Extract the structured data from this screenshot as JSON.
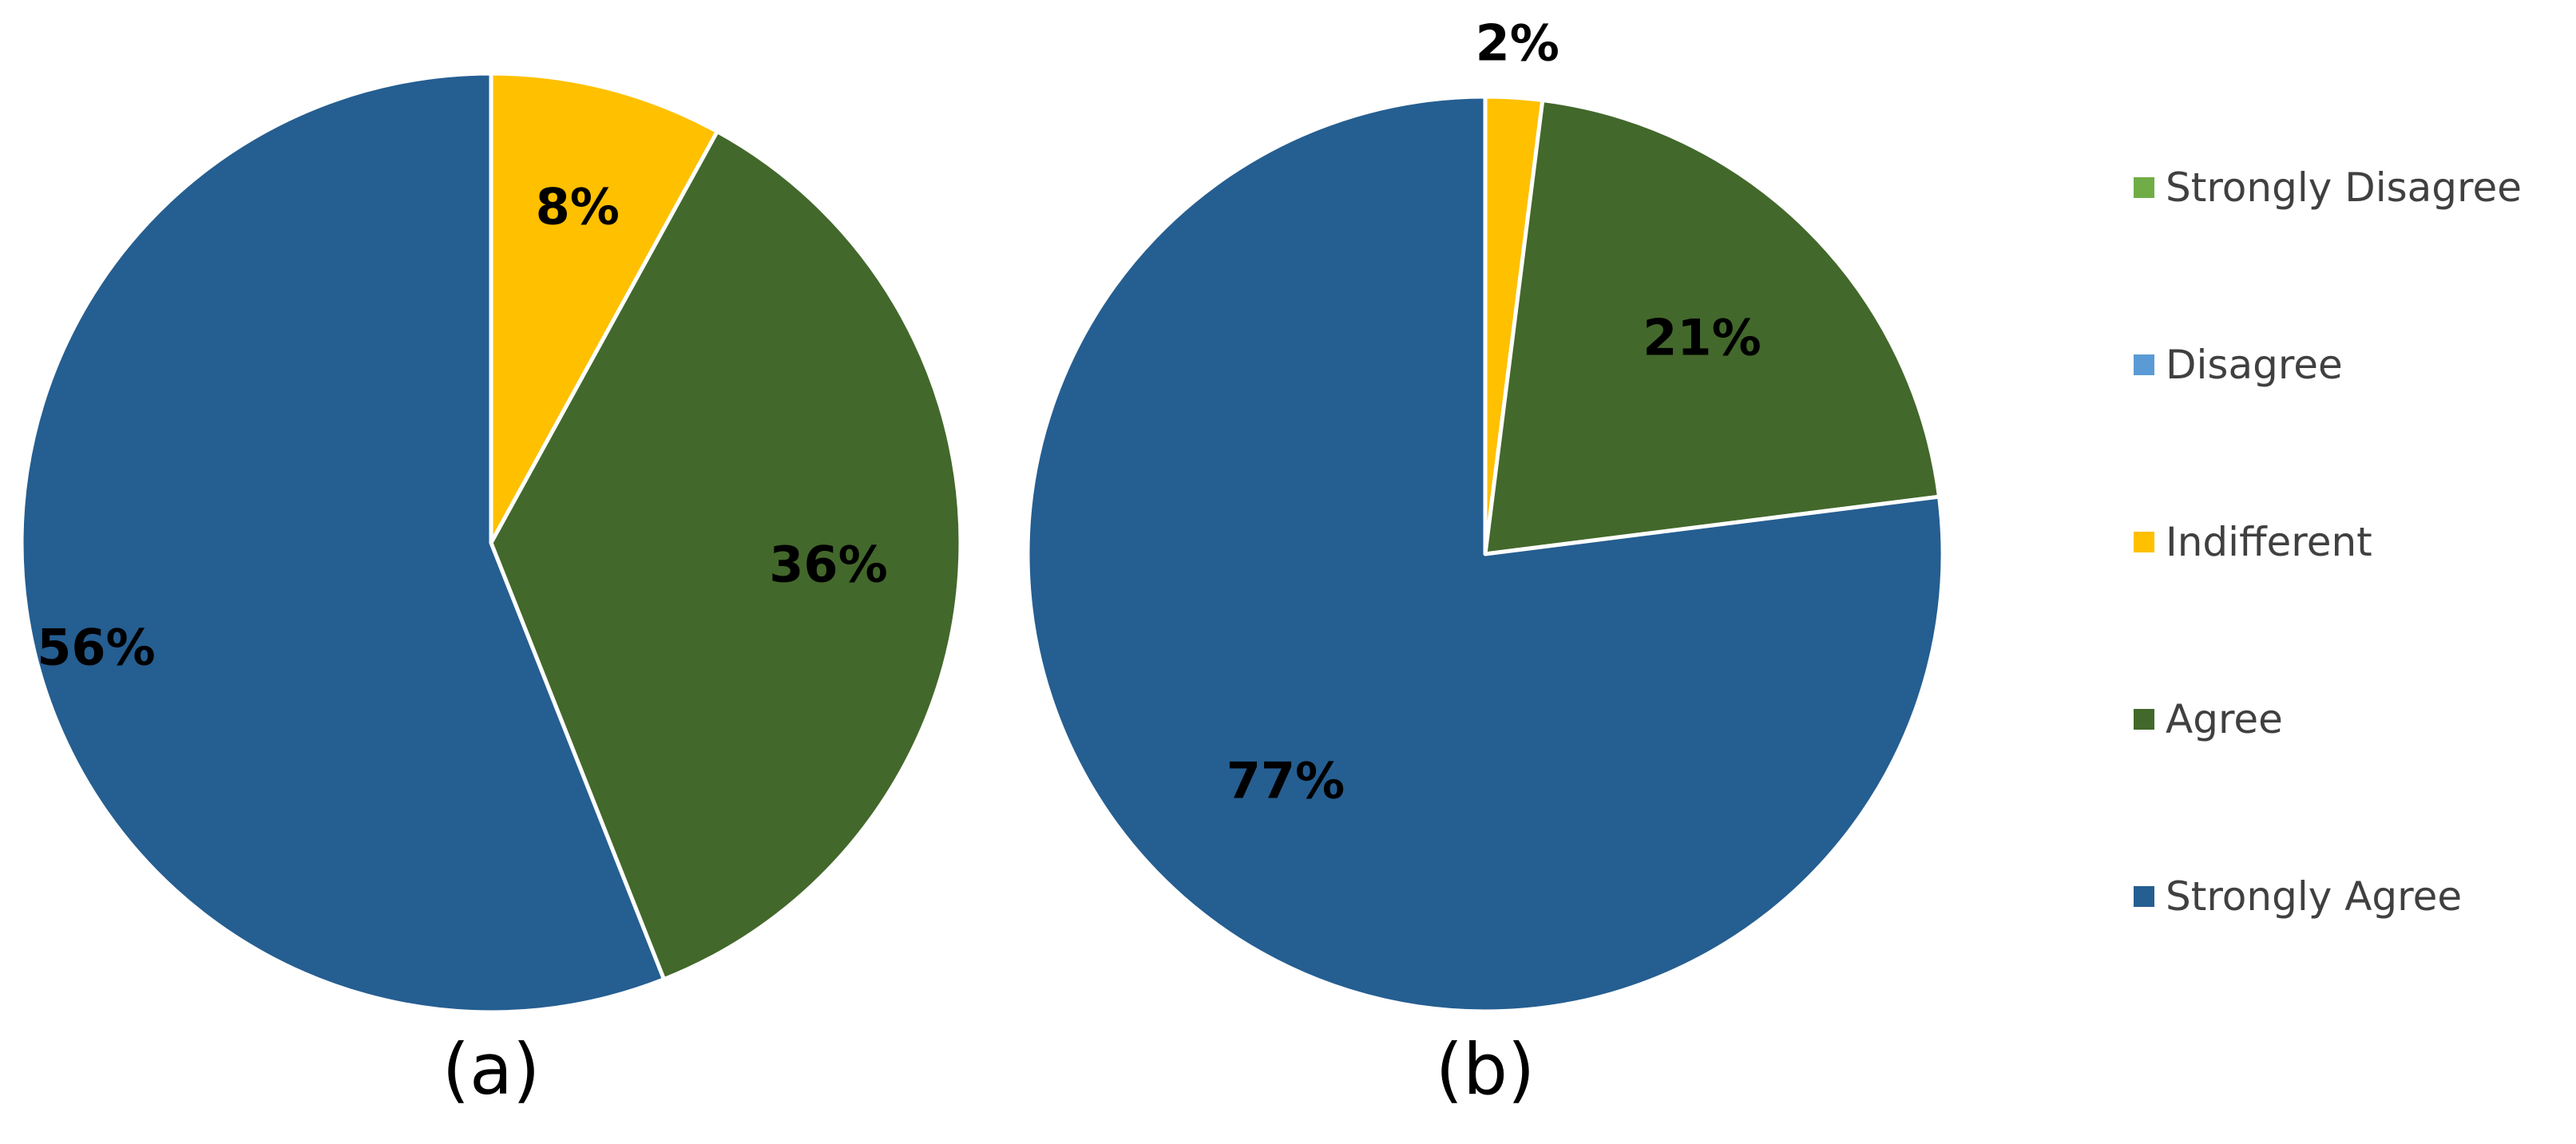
{
  "chart_data": [
    {
      "type": "pie",
      "panel_label": "(a)",
      "start_angle_deg": 0,
      "direction": "clockwise",
      "slices": [
        {
          "category": "Indifferent",
          "value": 8,
          "label": "8%",
          "color": "#FFC000"
        },
        {
          "category": "Agree",
          "value": 36,
          "label": "36%",
          "color": "#43682B"
        },
        {
          "category": "Strongly Agree",
          "value": 56,
          "label": "56%",
          "color": "#255E91"
        }
      ]
    },
    {
      "type": "pie",
      "panel_label": "(b)",
      "start_angle_deg": 0,
      "direction": "clockwise",
      "slices": [
        {
          "category": "Indifferent",
          "value": 2,
          "label": "2%",
          "color": "#FFC000"
        },
        {
          "category": "Agree",
          "value": 21,
          "label": "21%",
          "color": "#43682B"
        },
        {
          "category": "Strongly Agree",
          "value": 77,
          "label": "77%",
          "color": "#255E91"
        }
      ]
    }
  ],
  "legend": {
    "placement": "right",
    "items": [
      {
        "label": "Strongly Disagree",
        "color": "#70AD47"
      },
      {
        "label": "Disagree",
        "color": "#5B9BD5"
      },
      {
        "label": "Indifferent",
        "color": "#FFC000"
      },
      {
        "label": "Agree",
        "color": "#43682B"
      },
      {
        "label": "Strongly Agree",
        "color": "#255E91"
      }
    ]
  }
}
